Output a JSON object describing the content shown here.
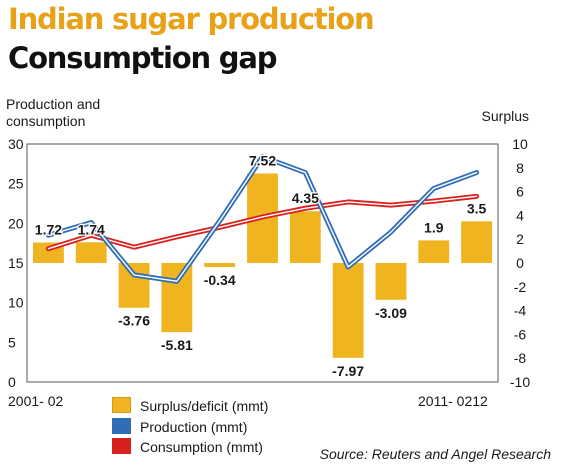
{
  "title": "Indian sugar production",
  "subtitle": "Consumption gap",
  "left_axis_label_line1": "Production and",
  "left_axis_label_line2": "consumption",
  "right_axis_label": "Surplus",
  "x_start_label": "2001- 02",
  "x_end_label": "2011- 0212",
  "source": "Source: Reuters and Angel Research",
  "colors": {
    "title": "#e8a21a",
    "bar": "#efb420",
    "production": "#2f6db5",
    "consumption": "#d8201f"
  },
  "legend": [
    {
      "label": "Surplus/deficit (mmt)",
      "color": "#efb420"
    },
    {
      "label": "Production (mmt)",
      "color": "#2f6db5"
    },
    {
      "label": "Consumption (mmt)",
      "color": "#d8201f"
    }
  ],
  "chart_data": {
    "type": "bar",
    "x": [
      "2001- 02",
      "",
      "",
      "",
      "",
      "",
      "",
      "",
      "",
      "",
      "2011- 0212"
    ],
    "left_ylim": [
      0,
      30
    ],
    "left_ticks": [
      0,
      5,
      10,
      15,
      20,
      25,
      30
    ],
    "right_ylim": [
      -10,
      10
    ],
    "right_ticks": [
      10,
      8,
      6,
      4,
      2,
      0,
      -2,
      -4,
      -6,
      -8,
      -10
    ],
    "series": [
      {
        "name": "Surplus/deficit (mmt)",
        "axis": "right",
        "type": "bar",
        "values": [
          1.72,
          1.74,
          -3.76,
          -5.81,
          -0.34,
          7.52,
          4.35,
          -7.97,
          -3.09,
          1.9,
          3.5
        ],
        "labels": [
          "1.72",
          "1.74",
          "-3.76",
          "-5.81",
          "-0.34",
          "7.52",
          "4.35",
          "-7.97",
          "-3.09",
          "1.9",
          "3.5"
        ]
      },
      {
        "name": "Production (mmt)",
        "axis": "left",
        "type": "line",
        "values": [
          18.5,
          20.1,
          13.5,
          12.7,
          20.3,
          28.4,
          26.4,
          14.5,
          18.9,
          24.4,
          26.4
        ]
      },
      {
        "name": "Consumption (mmt)",
        "axis": "left",
        "type": "line",
        "values": [
          16.8,
          18.5,
          17.0,
          18.3,
          19.5,
          20.8,
          21.9,
          22.7,
          22.3,
          22.8,
          23.4
        ]
      }
    ]
  }
}
